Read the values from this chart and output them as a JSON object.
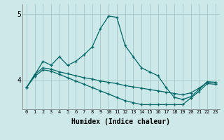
{
  "xlabel": "Humidex (Indice chaleur)",
  "xlim": [
    -0.5,
    23.5
  ],
  "ylim": [
    3.55,
    5.15
  ],
  "yticks": [
    4,
    5
  ],
  "xticks": [
    0,
    1,
    2,
    3,
    4,
    5,
    6,
    7,
    8,
    9,
    10,
    11,
    12,
    13,
    14,
    15,
    16,
    17,
    18,
    19,
    20,
    21,
    22,
    23
  ],
  "background_color": "#cce8e8",
  "grid_color": "#aacccc",
  "line_color": "#006868",
  "lines": [
    {
      "x": [
        0,
        1,
        2,
        3,
        4,
        5,
        6,
        7,
        8,
        9,
        10,
        11,
        12,
        13,
        14,
        15,
        16,
        17,
        18,
        19,
        20,
        21,
        22,
        23
      ],
      "y": [
        3.88,
        4.07,
        4.28,
        4.22,
        4.35,
        4.22,
        4.28,
        4.38,
        4.5,
        4.78,
        4.97,
        4.95,
        4.52,
        4.35,
        4.18,
        4.12,
        4.06,
        3.88,
        3.73,
        3.7,
        3.74,
        3.85,
        3.97,
        3.96
      ]
    },
    {
      "x": [
        0,
        1,
        2,
        3,
        4,
        5,
        6,
        7,
        8,
        9,
        10,
        11,
        12,
        13,
        14,
        15,
        16,
        17,
        18,
        19,
        20,
        21,
        22,
        23
      ],
      "y": [
        3.88,
        4.08,
        4.18,
        4.16,
        4.12,
        4.09,
        4.06,
        4.03,
        4.01,
        3.98,
        3.96,
        3.94,
        3.91,
        3.89,
        3.87,
        3.85,
        3.83,
        3.81,
        3.79,
        3.77,
        3.8,
        3.87,
        3.96,
        3.96
      ]
    },
    {
      "x": [
        0,
        1,
        2,
        3,
        4,
        5,
        6,
        7,
        8,
        9,
        10,
        11,
        12,
        13,
        14,
        15,
        16,
        17,
        18,
        19,
        20,
        21,
        22,
        23
      ],
      "y": [
        3.88,
        4.05,
        4.15,
        4.13,
        4.08,
        4.03,
        3.98,
        3.93,
        3.88,
        3.83,
        3.78,
        3.73,
        3.68,
        3.65,
        3.62,
        3.62,
        3.62,
        3.62,
        3.62,
        3.62,
        3.72,
        3.82,
        3.94,
        3.93
      ]
    }
  ]
}
